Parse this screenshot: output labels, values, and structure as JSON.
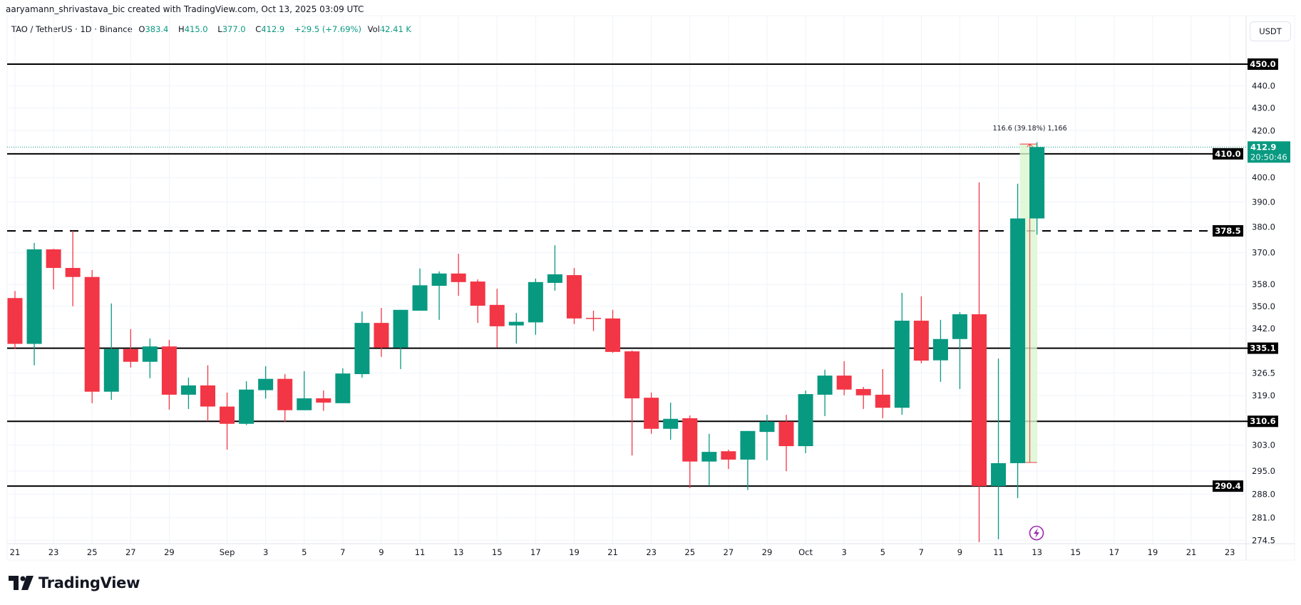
{
  "credit": "aaryamann_shrivastava_bic created with TradingView.com, Oct 13, 2025 03:09 UTC",
  "legend": {
    "symbol": "TAO / TetherUS · 1D · Binance",
    "open_label": "O",
    "open": "383.4",
    "high_label": "H",
    "high": "415.0",
    "low_label": "L",
    "low": "377.0",
    "close_label": "C",
    "close": "412.9",
    "change": "+29.5 (+7.69%)",
    "vol_label": "Vol",
    "vol": "42.41 K"
  },
  "currency_button": "USDT",
  "brand": "TradingView",
  "colors": {
    "up": "#089981",
    "down": "#F23645",
    "level_line": "#000000",
    "measure_fill": "#d9f7cf",
    "measure_line": "#F23645",
    "event_icon": "#9c27b0"
  },
  "chart_data": {
    "type": "candlestick",
    "title": "",
    "y_scale": "log",
    "ylim": [
      274.5,
      450.0
    ],
    "grid": true,
    "x_ticks": [
      {
        "date": "2025-08-21",
        "label": "21"
      },
      {
        "date": "2025-08-23",
        "label": "23"
      },
      {
        "date": "2025-08-25",
        "label": "25"
      },
      {
        "date": "2025-08-27",
        "label": "27"
      },
      {
        "date": "2025-08-29",
        "label": "29"
      },
      {
        "date": "2025-09-01",
        "label": "Sep"
      },
      {
        "date": "2025-09-03",
        "label": "3"
      },
      {
        "date": "2025-09-05",
        "label": "5"
      },
      {
        "date": "2025-09-07",
        "label": "7"
      },
      {
        "date": "2025-09-09",
        "label": "9"
      },
      {
        "date": "2025-09-11",
        "label": "11"
      },
      {
        "date": "2025-09-13",
        "label": "13"
      },
      {
        "date": "2025-09-15",
        "label": "15"
      },
      {
        "date": "2025-09-17",
        "label": "17"
      },
      {
        "date": "2025-09-19",
        "label": "19"
      },
      {
        "date": "2025-09-21",
        "label": "21"
      },
      {
        "date": "2025-09-23",
        "label": "23"
      },
      {
        "date": "2025-09-25",
        "label": "25"
      },
      {
        "date": "2025-09-27",
        "label": "27"
      },
      {
        "date": "2025-09-29",
        "label": "29"
      },
      {
        "date": "2025-10-01",
        "label": "Oct"
      },
      {
        "date": "2025-10-03",
        "label": "3"
      },
      {
        "date": "2025-10-05",
        "label": "5"
      },
      {
        "date": "2025-10-07",
        "label": "7"
      },
      {
        "date": "2025-10-09",
        "label": "9"
      },
      {
        "date": "2025-10-11",
        "label": "11"
      },
      {
        "date": "2025-10-13",
        "label": "13"
      },
      {
        "date": "2025-10-15",
        "label": "15"
      },
      {
        "date": "2025-10-17",
        "label": "17"
      },
      {
        "date": "2025-10-19",
        "label": "19"
      },
      {
        "date": "2025-10-21",
        "label": "21"
      },
      {
        "date": "2025-10-23",
        "label": "23"
      }
    ],
    "y_ticks": [
      "440.0",
      "430.0",
      "420.0",
      "400.0",
      "390.0",
      "380.0",
      "370.0",
      "358.0",
      "350.0",
      "342.0",
      "326.5",
      "319.0",
      "303.0",
      "295.0",
      "288.0",
      "281.0",
      "274.5"
    ],
    "levels": [
      {
        "price": "450.0",
        "style": "solid"
      },
      {
        "price": "410.0",
        "style": "solid"
      },
      {
        "price": "378.5",
        "style": "dashed"
      },
      {
        "price": "335.1",
        "style": "solid"
      },
      {
        "price": "310.6",
        "style": "solid"
      },
      {
        "price": "290.4",
        "style": "solid"
      }
    ],
    "last_price": {
      "price": "412.9",
      "countdown": "20:50:46"
    },
    "measure": {
      "label": "116.6 (39.18%) 1,166"
    },
    "candles": [
      [
        "2025-08-21",
        353.0,
        355.6,
        334.8,
        336.6
      ],
      [
        "2025-08-22",
        336.6,
        373.8,
        329.2,
        371.3
      ],
      [
        "2025-08-23",
        371.3,
        371.5,
        356.2,
        364.2
      ],
      [
        "2025-08-24",
        364.2,
        378.5,
        350.0,
        360.8
      ],
      [
        "2025-08-25",
        360.8,
        363.4,
        316.5,
        320.3
      ],
      [
        "2025-08-26",
        320.3,
        351.0,
        317.6,
        334.8
      ],
      [
        "2025-08-27",
        334.8,
        341.8,
        328.4,
        330.4
      ],
      [
        "2025-08-28",
        330.4,
        338.5,
        324.8,
        335.7
      ],
      [
        "2025-08-29",
        335.7,
        338.0,
        314.4,
        319.3
      ],
      [
        "2025-08-30",
        319.3,
        325.0,
        314.6,
        322.4
      ],
      [
        "2025-08-31",
        322.4,
        329.2,
        310.6,
        315.4
      ],
      [
        "2025-09-01",
        315.4,
        320.0,
        301.6,
        309.8
      ],
      [
        "2025-09-02",
        309.8,
        323.8,
        309.4,
        321.0
      ],
      [
        "2025-09-03",
        320.8,
        328.9,
        318.0,
        324.6
      ],
      [
        "2025-09-04",
        324.6,
        326.2,
        310.4,
        314.2
      ],
      [
        "2025-09-05",
        314.2,
        327.2,
        314.2,
        318.1
      ],
      [
        "2025-09-06",
        318.1,
        320.7,
        314.0,
        316.7
      ],
      [
        "2025-09-07",
        316.5,
        328.2,
        316.5,
        326.4
      ],
      [
        "2025-09-08",
        326.2,
        348.1,
        325.0,
        344.0
      ],
      [
        "2025-09-09",
        344.0,
        349.4,
        332.1,
        335.3
      ],
      [
        "2025-09-10",
        335.3,
        348.7,
        327.9,
        348.7
      ],
      [
        "2025-09-11",
        348.4,
        364.0,
        348.4,
        357.7
      ],
      [
        "2025-09-12",
        357.5,
        362.9,
        345.1,
        362.1
      ],
      [
        "2025-09-13",
        362.1,
        369.6,
        353.8,
        358.9
      ],
      [
        "2025-09-14",
        359.1,
        359.9,
        344.0,
        350.2
      ],
      [
        "2025-09-15",
        350.5,
        356.4,
        335.3,
        342.8
      ],
      [
        "2025-09-16",
        343.1,
        347.6,
        336.7,
        344.4
      ],
      [
        "2025-09-17",
        344.2,
        360.2,
        339.8,
        358.9
      ],
      [
        "2025-09-18",
        358.6,
        372.9,
        355.7,
        361.8
      ],
      [
        "2025-09-19",
        361.5,
        364.2,
        343.6,
        345.6
      ],
      [
        "2025-09-20",
        345.8,
        348.4,
        341.1,
        345.7
      ],
      [
        "2025-09-21",
        345.6,
        348.7,
        333.5,
        333.8
      ],
      [
        "2025-09-22",
        334.0,
        334.3,
        299.8,
        318.1
      ],
      [
        "2025-09-23",
        318.3,
        320.0,
        306.6,
        308.2
      ],
      [
        "2025-09-24",
        308.2,
        316.7,
        304.7,
        311.4
      ],
      [
        "2025-09-25",
        311.6,
        312.5,
        289.8,
        297.9
      ],
      [
        "2025-09-26",
        297.9,
        306.6,
        290.5,
        300.9
      ],
      [
        "2025-09-27",
        301.1,
        301.6,
        295.6,
        298.5
      ],
      [
        "2025-09-28",
        298.5,
        307.5,
        289.2,
        307.5
      ],
      [
        "2025-09-29",
        307.2,
        312.7,
        298.3,
        310.5
      ],
      [
        "2025-09-30",
        310.5,
        312.7,
        294.9,
        302.7
      ],
      [
        "2025-10-01",
        302.7,
        320.7,
        300.5,
        319.5
      ],
      [
        "2025-10-02",
        319.3,
        327.7,
        312.3,
        325.7
      ],
      [
        "2025-10-03",
        325.7,
        330.6,
        319.1,
        321.0
      ],
      [
        "2025-10-04",
        321.2,
        321.9,
        314.6,
        319.1
      ],
      [
        "2025-10-05",
        319.3,
        327.9,
        311.6,
        315.0
      ],
      [
        "2025-10-06",
        315.0,
        354.9,
        312.7,
        344.8
      ],
      [
        "2025-10-07",
        344.8,
        353.6,
        329.9,
        330.8
      ],
      [
        "2025-10-08",
        330.9,
        345.1,
        323.6,
        338.3
      ],
      [
        "2025-10-09",
        338.3,
        347.9,
        321.2,
        347.1
      ],
      [
        "2025-10-10",
        347.1,
        398.0,
        274.0,
        290.4
      ],
      [
        "2025-10-11",
        290.4,
        331.5,
        274.8,
        297.4
      ],
      [
        "2025-10-12",
        297.4,
        397.5,
        286.8,
        383.4
      ],
      [
        "2025-10-13",
        383.4,
        415.0,
        377.0,
        412.9
      ]
    ]
  }
}
